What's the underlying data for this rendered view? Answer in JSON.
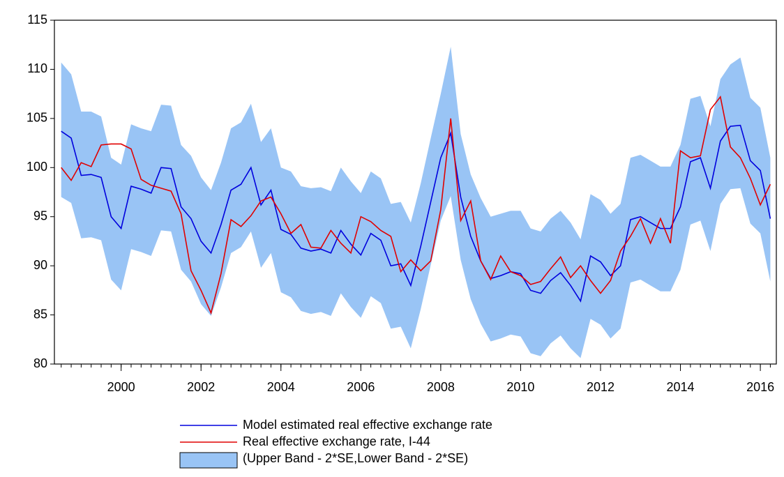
{
  "chart_data": {
    "type": "line",
    "x": [
      1998.5,
      1998.75,
      1999,
      1999.25,
      1999.5,
      1999.75,
      2000,
      2000.25,
      2000.5,
      2000.75,
      2001,
      2001.25,
      2001.5,
      2001.75,
      2002,
      2002.25,
      2002.5,
      2002.75,
      2003,
      2003.25,
      2003.5,
      2003.75,
      2004,
      2004.25,
      2004.5,
      2004.75,
      2005,
      2005.25,
      2005.5,
      2005.75,
      2006,
      2006.25,
      2006.5,
      2006.75,
      2007,
      2007.25,
      2007.5,
      2007.75,
      2008,
      2008.25,
      2008.5,
      2008.75,
      2009,
      2009.25,
      2009.5,
      2009.75,
      2010,
      2010.25,
      2010.5,
      2010.75,
      2011,
      2011.25,
      2011.5,
      2011.75,
      2012,
      2012.25,
      2012.5,
      2012.75,
      2013,
      2013.25,
      2013.5,
      2013.75,
      2014,
      2014.25,
      2014.5,
      2014.75,
      2015,
      2015.25,
      2015.5,
      2015.75,
      2016,
      2016.25
    ],
    "band": {
      "name": "(Upper Band - 2*SE,Lower Band - 2*SE)",
      "color": "#99c4f5",
      "upper": [
        110.7,
        109.5,
        105.7,
        105.7,
        105.2,
        101,
        100.3,
        104.4,
        104,
        103.7,
        106.4,
        106.3,
        102.3,
        101.2,
        99,
        97.7,
        100.5,
        104,
        104.6,
        106.5,
        102.6,
        104,
        100,
        99.6,
        98.1,
        97.9,
        98,
        97.6,
        100,
        98.6,
        97.4,
        99.6,
        98.9,
        96.3,
        96.5,
        94.4,
        98.4,
        103,
        107.5,
        112.3,
        103.4,
        99.3,
        96.9,
        95,
        95.3,
        95.6,
        95.6,
        93.8,
        93.5,
        94.8,
        95.6,
        94.4,
        92.7,
        97.3,
        96.7,
        95.3,
        96.3,
        101,
        101.3,
        100.7,
        100.1,
        100.1,
        102.3,
        107,
        107.3,
        104.2,
        109,
        110.5,
        111.2,
        107.1,
        106.1,
        101
      ],
      "lower": [
        97,
        96.4,
        92.8,
        92.9,
        92.6,
        88.6,
        87.5,
        91.7,
        91.4,
        91,
        93.6,
        93.5,
        89.6,
        88.4,
        86.1,
        84.9,
        87.8,
        91.3,
        91.9,
        93.5,
        89.8,
        91.3,
        87.3,
        86.8,
        85.4,
        85.1,
        85.3,
        84.9,
        87.2,
        85.8,
        84.7,
        86.9,
        86.2,
        83.6,
        83.8,
        81.6,
        85.6,
        90.1,
        94.6,
        97.1,
        90.6,
        86.6,
        84.1,
        82.3,
        82.6,
        83,
        82.8,
        81.1,
        80.8,
        82.1,
        82.9,
        81.6,
        80.6,
        84.6,
        84,
        82.6,
        83.6,
        88.3,
        88.6,
        88,
        87.4,
        87.4,
        89.6,
        94.2,
        94.6,
        91.5,
        96.3,
        97.8,
        97.9,
        94.3,
        93.3,
        88.4
      ]
    },
    "series": [
      {
        "name": "Model estimated real effective exchange rate",
        "color": "#0000dd",
        "values": [
          103.7,
          103,
          99.2,
          99.3,
          99,
          95,
          93.8,
          98.1,
          97.8,
          97.4,
          100,
          99.9,
          96,
          94.8,
          92.5,
          91.3,
          94.2,
          97.7,
          98.3,
          100,
          96.2,
          97.7,
          93.7,
          93.2,
          91.8,
          91.5,
          91.7,
          91.3,
          93.6,
          92.2,
          91.1,
          93.3,
          92.6,
          90,
          90.2,
          88,
          92,
          96.5,
          101,
          103.5,
          97,
          93,
          90.5,
          88.7,
          89,
          89.4,
          89.2,
          87.5,
          87.2,
          88.5,
          89.3,
          88,
          86.4,
          91,
          90.4,
          89,
          90,
          94.7,
          95,
          94.4,
          93.8,
          93.8,
          96,
          100.6,
          101,
          97.9,
          102.7,
          104.2,
          104.3,
          100.7,
          99.7,
          94.8
        ]
      },
      {
        "name": "Real effective exchange rate, I-44",
        "color": "#e00000",
        "values": [
          100,
          98.7,
          100.5,
          100.1,
          102.3,
          102.4,
          102.4,
          101.9,
          98.8,
          98.2,
          97.9,
          97.6,
          95.3,
          89.5,
          87.5,
          85.2,
          89.2,
          94.7,
          94,
          95.1,
          96.6,
          97,
          95.3,
          93.3,
          94.2,
          91.9,
          91.8,
          93.6,
          92.3,
          91.3,
          95,
          94.5,
          93.6,
          93,
          89.4,
          90.6,
          89.5,
          90.5,
          95.7,
          105,
          94.6,
          96.6,
          90.5,
          88.6,
          91,
          89.4,
          89,
          88.1,
          88.4,
          89.7,
          90.9,
          88.8,
          90,
          88.5,
          87.2,
          88.5,
          91.5,
          93,
          94.8,
          92.3,
          94.8,
          92.3,
          101.7,
          101,
          101.2,
          105.9,
          107.2,
          102.1,
          101,
          98.9,
          96.2,
          98.3
        ]
      }
    ],
    "xlim": [
      1998.33,
      2016.4
    ],
    "xticks": [
      2000,
      2002,
      2004,
      2006,
      2008,
      2010,
      2012,
      2014,
      2016
    ],
    "ylim": [
      80,
      115
    ],
    "yticks": [
      80,
      85,
      90,
      95,
      100,
      105,
      110,
      115
    ]
  }
}
